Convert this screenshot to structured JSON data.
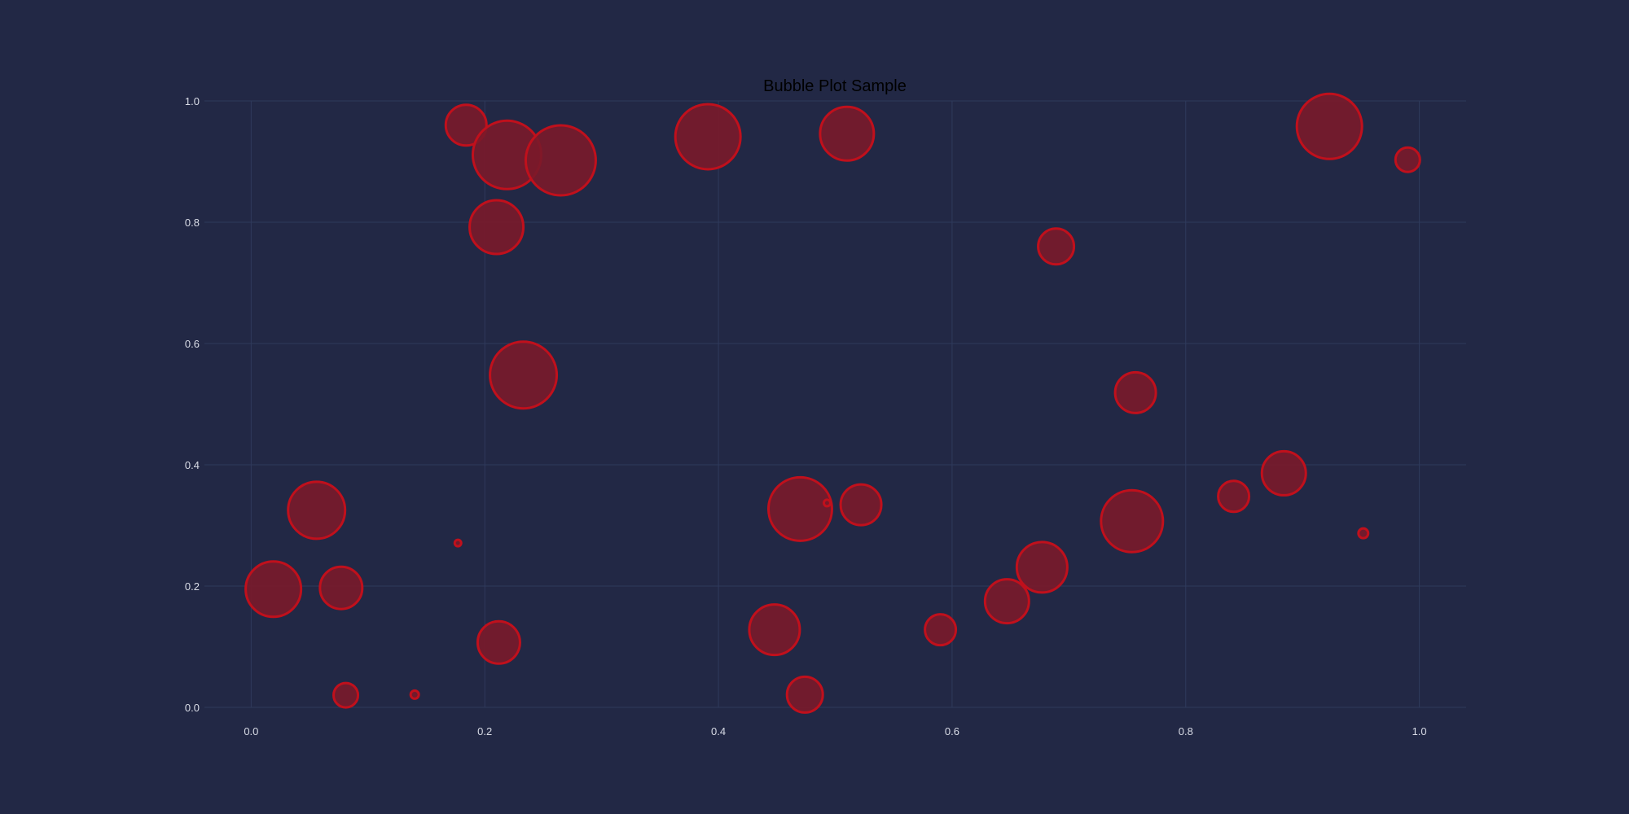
{
  "chart_data": {
    "type": "scatter",
    "title": "Bubble Plot Sample",
    "xlabel": "",
    "ylabel": "",
    "xlim": [
      -0.04,
      1.04
    ],
    "ylim": [
      0.0,
      1.0
    ],
    "x_ticks": [
      "0.0",
      "0.2",
      "0.4",
      "0.6",
      "0.8",
      "1.0"
    ],
    "y_ticks": [
      "0.0",
      "0.2",
      "0.4",
      "0.6",
      "0.8",
      "1.0"
    ],
    "grid": true,
    "colors": {
      "background": "#222845",
      "bubble_fill": "#7a1a2a",
      "bubble_edge": "#c0101c",
      "grid": "#2f3a5c"
    },
    "series": [
      {
        "points": [
          {
            "x": 0.019,
            "y": 0.195,
            "size": 34
          },
          {
            "x": 0.056,
            "y": 0.325,
            "size": 35
          },
          {
            "x": 0.077,
            "y": 0.197,
            "size": 26
          },
          {
            "x": 0.081,
            "y": 0.02,
            "size": 15
          },
          {
            "x": 0.14,
            "y": 0.021,
            "size": 5
          },
          {
            "x": 0.177,
            "y": 0.271,
            "size": 4
          },
          {
            "x": 0.184,
            "y": 0.96,
            "size": 25
          },
          {
            "x": 0.21,
            "y": 0.792,
            "size": 33
          },
          {
            "x": 0.212,
            "y": 0.107,
            "size": 26
          },
          {
            "x": 0.219,
            "y": 0.911,
            "size": 42
          },
          {
            "x": 0.233,
            "y": 0.548,
            "size": 41
          },
          {
            "x": 0.265,
            "y": 0.902,
            "size": 43
          },
          {
            "x": 0.391,
            "y": 0.941,
            "size": 40
          },
          {
            "x": 0.448,
            "y": 0.128,
            "size": 31
          },
          {
            "x": 0.47,
            "y": 0.327,
            "size": 39
          },
          {
            "x": 0.474,
            "y": 0.021,
            "size": 22
          },
          {
            "x": 0.493,
            "y": 0.337,
            "size": 4
          },
          {
            "x": 0.51,
            "y": 0.946,
            "size": 33
          },
          {
            "x": 0.522,
            "y": 0.334,
            "size": 25
          },
          {
            "x": 0.59,
            "y": 0.128,
            "size": 19
          },
          {
            "x": 0.647,
            "y": 0.175,
            "size": 27
          },
          {
            "x": 0.677,
            "y": 0.231,
            "size": 31
          },
          {
            "x": 0.689,
            "y": 0.76,
            "size": 22
          },
          {
            "x": 0.754,
            "y": 0.307,
            "size": 38
          },
          {
            "x": 0.757,
            "y": 0.519,
            "size": 25
          },
          {
            "x": 0.841,
            "y": 0.348,
            "size": 19
          },
          {
            "x": 0.884,
            "y": 0.386,
            "size": 27
          },
          {
            "x": 0.923,
            "y": 0.958,
            "size": 40
          },
          {
            "x": 0.952,
            "y": 0.287,
            "size": 6
          },
          {
            "x": 0.99,
            "y": 0.903,
            "size": 15
          }
        ]
      }
    ]
  }
}
